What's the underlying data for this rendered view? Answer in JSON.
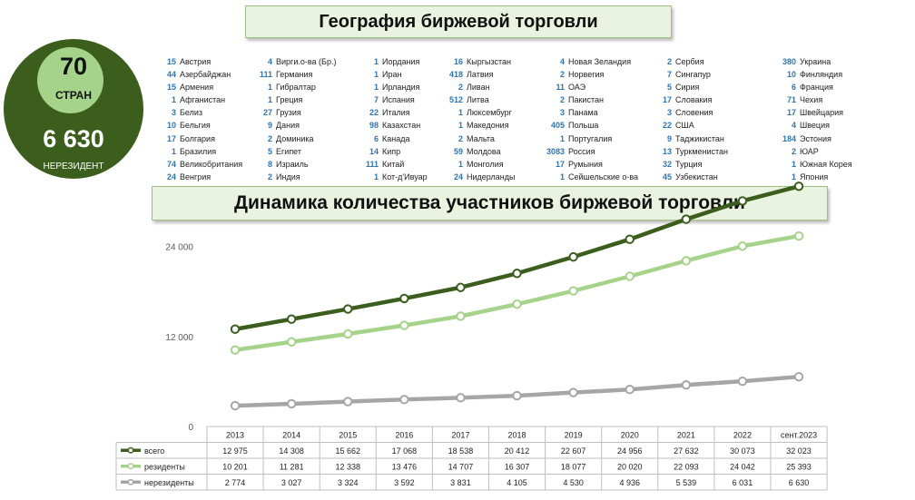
{
  "geo_title": "География биржевой торговли",
  "dynamics_title": "Динамика количества участников биржевой торговли",
  "badge": {
    "count": "70",
    "count_label": "СТРАН",
    "nonresidents": "6 630",
    "nonresidents_label": "НЕРЕЗИДЕНТ"
  },
  "countries": [
    [
      [
        "15",
        "Австрия"
      ],
      [
        "44",
        "Азербайджан"
      ],
      [
        "15",
        "Армения"
      ],
      [
        "1",
        "Афганистан"
      ],
      [
        "3",
        "Белиз"
      ],
      [
        "10",
        "Бельгия"
      ],
      [
        "17",
        "Болгария"
      ],
      [
        "1",
        "Бразилия"
      ],
      [
        "74",
        "Великобритания"
      ],
      [
        "24",
        "Венгрия"
      ]
    ],
    [
      [
        "4",
        "Вирги.о-ва (Бр.)"
      ],
      [
        "111",
        "Германия"
      ],
      [
        "1",
        "Гибралтар"
      ],
      [
        "1",
        "Греция"
      ],
      [
        "27",
        "Грузия"
      ],
      [
        "9",
        "Дания"
      ],
      [
        "2",
        "Доминика"
      ],
      [
        "5",
        "Египет"
      ],
      [
        "8",
        "Израиль"
      ],
      [
        "2",
        "Индия"
      ]
    ],
    [
      [
        "1",
        "Иордания"
      ],
      [
        "1",
        "Иран"
      ],
      [
        "1",
        "Ирландия"
      ],
      [
        "7",
        "Испания"
      ],
      [
        "22",
        "Италия"
      ],
      [
        "98",
        "Казахстан"
      ],
      [
        "6",
        "Канада"
      ],
      [
        "14",
        "Кипр"
      ],
      [
        "111",
        "Китай"
      ],
      [
        "1",
        "Кот-д'Ивуар"
      ]
    ],
    [
      [
        "16",
        "Кыргызстан"
      ],
      [
        "418",
        "Латвия"
      ],
      [
        "2",
        "Ливан"
      ],
      [
        "512",
        "Литва"
      ],
      [
        "1",
        "Люксембург"
      ],
      [
        "1",
        "Македония"
      ],
      [
        "2",
        "Мальта"
      ],
      [
        "59",
        "Молдова"
      ],
      [
        "1",
        "Монголия"
      ],
      [
        "24",
        "Нидерланды"
      ]
    ],
    [
      [
        "4",
        "Новая Зеландия"
      ],
      [
        "2",
        "Норвегия"
      ],
      [
        "11",
        "ОАЭ"
      ],
      [
        "2",
        "Пакистан"
      ],
      [
        "3",
        "Панама"
      ],
      [
        "405",
        "Польша"
      ],
      [
        "1",
        "Португалия"
      ],
      [
        "3083",
        "Россия"
      ],
      [
        "17",
        "Румыния"
      ],
      [
        "1",
        "Сейшельские о-ва"
      ]
    ],
    [
      [
        "2",
        "Сербия"
      ],
      [
        "7",
        "Сингапур"
      ],
      [
        "5",
        "Сирия"
      ],
      [
        "17",
        "Словакия"
      ],
      [
        "3",
        "Словения"
      ],
      [
        "22",
        "США"
      ],
      [
        "9",
        "Таджикистан"
      ],
      [
        "13",
        "Туркменистан"
      ],
      [
        "32",
        "Турция"
      ],
      [
        "45",
        "Узбекистан"
      ]
    ],
    [
      [
        "380",
        "Украина"
      ],
      [
        "10",
        "Финляндия"
      ],
      [
        "6",
        "Франция"
      ],
      [
        "71",
        "Чехия"
      ],
      [
        "17",
        "Швейцария"
      ],
      [
        "4",
        "Швеция"
      ],
      [
        "184",
        "Эстония"
      ],
      [
        "2",
        "ЮАР"
      ],
      [
        "1",
        "Южная Корея"
      ],
      [
        "1",
        "Япония"
      ]
    ]
  ],
  "chart_data": {
    "type": "line",
    "title": "Динамика количества участников биржевой торговли",
    "categories": [
      "2013",
      "2014",
      "2015",
      "2016",
      "2017",
      "2018",
      "2019",
      "2020",
      "2021",
      "2022",
      "сент.2023"
    ],
    "ylim": [
      0,
      30000
    ],
    "yticks": [
      0,
      12000,
      24000
    ],
    "ytick_labels": [
      "0",
      "12 000",
      "24 000"
    ],
    "grid": false,
    "legend": "table-bottom",
    "series": [
      {
        "name": "всего",
        "color": "#3b5e1d",
        "values": [
          12975,
          14308,
          15662,
          17068,
          18538,
          20412,
          22607,
          24956,
          27632,
          30073,
          32023
        ],
        "labels": [
          "12 975",
          "14 308",
          "15 662",
          "17 068",
          "18 538",
          "20 412",
          "22 607",
          "24 956",
          "27 632",
          "30 073",
          "32 023"
        ]
      },
      {
        "name": "резиденты",
        "color": "#a5d38a",
        "values": [
          10201,
          11281,
          12338,
          13476,
          14707,
          16307,
          18077,
          20020,
          22093,
          24042,
          25393
        ],
        "labels": [
          "10 201",
          "11 281",
          "12 338",
          "13 476",
          "14 707",
          "16 307",
          "18 077",
          "20 020",
          "22 093",
          "24 042",
          "25 393"
        ]
      },
      {
        "name": "нерезиденты",
        "color": "#a6a6a6",
        "values": [
          2774,
          3027,
          3324,
          3592,
          3831,
          4105,
          4530,
          4936,
          5539,
          6031,
          6630
        ],
        "labels": [
          "2 774",
          "3 027",
          "3 324",
          "3 592",
          "3 831",
          "4 105",
          "4 530",
          "4 936",
          "5 539",
          "6 031",
          "6 630"
        ]
      }
    ]
  }
}
